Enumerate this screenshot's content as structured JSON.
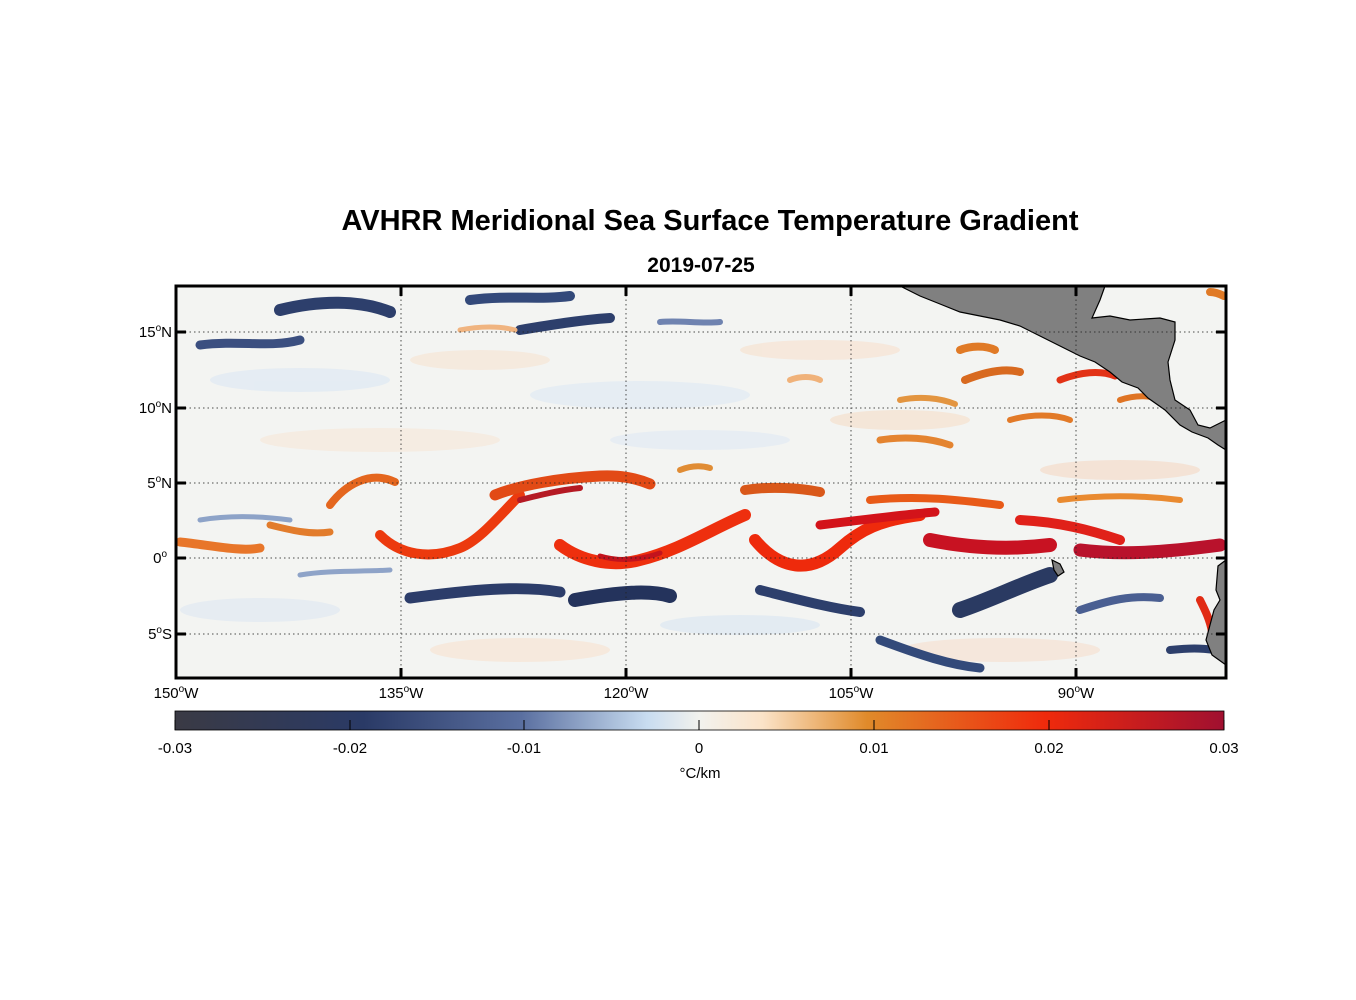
{
  "figure": {
    "title": "AVHRR Meridional Sea Surface Temperature Gradient",
    "date": "2019-07-25"
  },
  "map": {
    "lon_range": [
      -150,
      -80
    ],
    "lat_range": [
      -8,
      18
    ],
    "land_color": "#808080",
    "y_ticks": [
      {
        "deg": "15",
        "sup": "o",
        "hemi": "N",
        "lat": 15
      },
      {
        "deg": "10",
        "sup": "o",
        "hemi": "N",
        "lat": 10
      },
      {
        "deg": "5",
        "sup": "o",
        "hemi": "N",
        "lat": 5
      },
      {
        "deg": "0",
        "sup": "o",
        "hemi": "",
        "lat": 0
      },
      {
        "deg": "5",
        "sup": "o",
        "hemi": "S",
        "lat": -5
      }
    ],
    "x_ticks": [
      {
        "deg": "150",
        "sup": "o",
        "hemi": "W",
        "lon": -150
      },
      {
        "deg": "135",
        "sup": "o",
        "hemi": "W",
        "lon": -135
      },
      {
        "deg": "120",
        "sup": "o",
        "hemi": "W",
        "lon": -120
      },
      {
        "deg": "105",
        "sup": "o",
        "hemi": "W",
        "lon": -105
      },
      {
        "deg": "90",
        "sup": "o",
        "hemi": "W",
        "lon": -90
      }
    ]
  },
  "colorbar": {
    "min": -0.03,
    "max": 0.03,
    "tick_labels": [
      "-0.03",
      "-0.02",
      "-0.01",
      "0",
      "0.01",
      "0.02",
      "0.03"
    ],
    "unit": "°C/km",
    "colors": {
      "neg_strong": "#3a3a44",
      "neg_mid": "#2a3a66",
      "neg_light": "#5a6fa0",
      "neg_pale": "#c8dcf0",
      "zero": "#f2f2ee",
      "pos_pale": "#fbe3c8",
      "pos_light": "#e08a2a",
      "pos_mid": "#ef2a0c",
      "pos_strong": "#a01030"
    }
  }
}
